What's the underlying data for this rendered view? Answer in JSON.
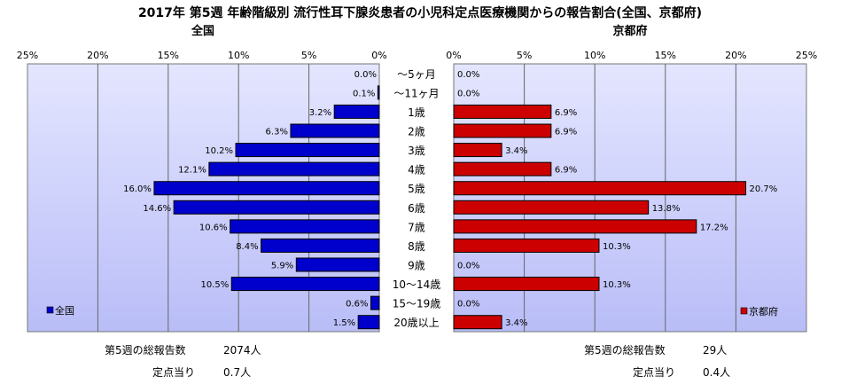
{
  "title": "2017年 第5週 年齢階級別 流行性耳下腺炎患者の小児科定点医療機関からの報告割合(全国、京都府)",
  "chart_data": {
    "type": "bar",
    "orientation": "horizontal-butterfly",
    "categories": [
      "～5ヶ月",
      "～11ヶ月",
      "1歳",
      "2歳",
      "3歳",
      "4歳",
      "5歳",
      "6歳",
      "7歳",
      "8歳",
      "9歳",
      "10～14歳",
      "15～19歳",
      "20歳以上"
    ],
    "xlim": [
      0,
      25
    ],
    "ticks": [
      0,
      5,
      10,
      15,
      20,
      25
    ],
    "tick_labels": [
      "0%",
      "5%",
      "10%",
      "15%",
      "20%",
      "25%"
    ],
    "grid": true,
    "series": [
      {
        "name": "全国",
        "panel_title": "全国",
        "side": "left",
        "color": "#0000cc",
        "legend": "bottom-left",
        "values": [
          0.0,
          0.1,
          3.2,
          6.3,
          10.2,
          12.1,
          16.0,
          14.6,
          10.6,
          8.4,
          5.9,
          10.5,
          0.6,
          1.5
        ],
        "labels": [
          "0.0%",
          "0.1%",
          "3.2%",
          "6.3%",
          "10.2%",
          "12.1%",
          "16.0%",
          "14.6%",
          "10.6%",
          "8.4%",
          "5.9%",
          "10.5%",
          "0.6%",
          "1.5%"
        ]
      },
      {
        "name": "京都府",
        "panel_title": "京都府",
        "side": "right",
        "color": "#cc0000",
        "legend": "bottom-right",
        "values": [
          0.0,
          0.0,
          6.9,
          6.9,
          3.4,
          6.9,
          20.7,
          13.8,
          17.2,
          10.3,
          0.0,
          10.3,
          0.0,
          3.4
        ],
        "labels": [
          "0.0%",
          "0.0%",
          "6.9%",
          "6.9%",
          "3.4%",
          "6.9%",
          "20.7%",
          "13.8%",
          "17.2%",
          "10.3%",
          "0.0%",
          "10.3%",
          "0.0%",
          "3.4%"
        ]
      }
    ]
  },
  "footer": {
    "national_total_label": "第5週の総報告数",
    "national_total_value": "2074人",
    "national_per_label": "定点当り",
    "national_per_value": "0.7人",
    "kyoto_total_label": "第5週の総報告数",
    "kyoto_total_value": "29人",
    "kyoto_per_label": "定点当り",
    "kyoto_per_value": "0.4人"
  }
}
